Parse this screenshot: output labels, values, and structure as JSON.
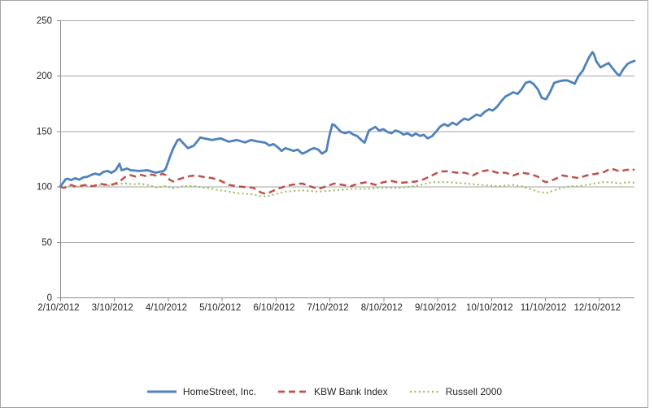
{
  "chart_data": {
    "type": "line",
    "title": "",
    "xlabel": "",
    "ylabel": "",
    "grid": "horizontal",
    "legend_position": "bottom",
    "x_axis": {
      "tick_labels": [
        "2/10/2012",
        "3/10/2012",
        "4/10/2012",
        "5/10/2012",
        "6/10/2012",
        "7/10/2012",
        "8/10/2012",
        "9/10/2012",
        "10/10/2012",
        "11/10/2012",
        "12/10/2012"
      ],
      "tick_positions_months": [
        0,
        1,
        2,
        3,
        4,
        5,
        6,
        7,
        8,
        9,
        10
      ],
      "max_months": 10.66
    },
    "y_axis": {
      "tick_labels": [
        "0",
        "50",
        "100",
        "150",
        "200",
        "250"
      ],
      "ticks": [
        0,
        50,
        100,
        150,
        200,
        250
      ],
      "min": 0,
      "max": 250
    },
    "series": [
      {
        "name": "HomeStreet, Inc.",
        "color": "#4F81BD",
        "style": "solid",
        "points": [
          [
            0,
            100
          ],
          [
            0.05,
            103
          ],
          [
            0.1,
            106.5
          ],
          [
            0.14,
            107
          ],
          [
            0.2,
            105.8
          ],
          [
            0.28,
            107.5
          ],
          [
            0.35,
            106.2
          ],
          [
            0.43,
            108.2
          ],
          [
            0.5,
            108.7
          ],
          [
            0.58,
            110.6
          ],
          [
            0.65,
            111.6
          ],
          [
            0.73,
            110.6
          ],
          [
            0.8,
            113.1
          ],
          [
            0.88,
            114.1
          ],
          [
            0.95,
            112.3
          ],
          [
            1.03,
            114.8
          ],
          [
            1.1,
            120.5
          ],
          [
            1.14,
            114.7
          ],
          [
            1.24,
            116.2
          ],
          [
            1.31,
            114.7
          ],
          [
            1.47,
            114
          ],
          [
            1.62,
            114.7
          ],
          [
            1.77,
            112.5
          ],
          [
            1.92,
            114
          ],
          [
            1.96,
            116.2
          ],
          [
            2.04,
            127.2
          ],
          [
            2.1,
            134.6
          ],
          [
            2.18,
            141.9
          ],
          [
            2.22,
            142.6
          ],
          [
            2.3,
            138.2
          ],
          [
            2.37,
            134.6
          ],
          [
            2.48,
            136.8
          ],
          [
            2.6,
            144.1
          ],
          [
            2.67,
            143.4
          ],
          [
            2.82,
            141.9
          ],
          [
            2.98,
            143.4
          ],
          [
            3.13,
            140.4
          ],
          [
            3.28,
            141.9
          ],
          [
            3.43,
            139.7
          ],
          [
            3.54,
            141.9
          ],
          [
            3.66,
            140.7
          ],
          [
            3.81,
            139.5
          ],
          [
            3.88,
            137
          ],
          [
            3.96,
            138.2
          ],
          [
            4.03,
            135.8
          ],
          [
            4.11,
            132.1
          ],
          [
            4.18,
            134.6
          ],
          [
            4.26,
            133.3
          ],
          [
            4.33,
            132.1
          ],
          [
            4.41,
            133.3
          ],
          [
            4.49,
            129.7
          ],
          [
            4.56,
            130.9
          ],
          [
            4.64,
            133.3
          ],
          [
            4.71,
            134.6
          ],
          [
            4.79,
            133.3
          ],
          [
            4.86,
            129.7
          ],
          [
            4.94,
            132.1
          ],
          [
            4.99,
            144.4
          ],
          [
            5.05,
            156.1
          ],
          [
            5.09,
            155.4
          ],
          [
            5.14,
            152.9
          ],
          [
            5.21,
            149.3
          ],
          [
            5.29,
            148
          ],
          [
            5.36,
            149.3
          ],
          [
            5.44,
            146.8
          ],
          [
            5.51,
            145.6
          ],
          [
            5.59,
            141.9
          ],
          [
            5.65,
            139.5
          ],
          [
            5.73,
            150.5
          ],
          [
            5.85,
            153.7
          ],
          [
            5.92,
            150.5
          ],
          [
            6,
            151.7
          ],
          [
            6.07,
            149.3
          ],
          [
            6.15,
            148
          ],
          [
            6.22,
            150.5
          ],
          [
            6.3,
            149.3
          ],
          [
            6.37,
            146.8
          ],
          [
            6.45,
            148
          ],
          [
            6.53,
            145.6
          ],
          [
            6.6,
            147.8
          ],
          [
            6.68,
            145.6
          ],
          [
            6.75,
            146.6
          ],
          [
            6.82,
            143.4
          ],
          [
            6.9,
            145.3
          ],
          [
            6.97,
            149
          ],
          [
            7.05,
            153.9
          ],
          [
            7.13,
            156.3
          ],
          [
            7.2,
            154.6
          ],
          [
            7.28,
            157.5
          ],
          [
            7.36,
            155.6
          ],
          [
            7.43,
            158.8
          ],
          [
            7.5,
            161.2
          ],
          [
            7.58,
            160
          ],
          [
            7.65,
            162.4
          ],
          [
            7.73,
            164.9
          ],
          [
            7.8,
            163.6
          ],
          [
            7.88,
            167.3
          ],
          [
            7.96,
            169.7
          ],
          [
            8.03,
            168.5
          ],
          [
            8.11,
            172
          ],
          [
            8.19,
            177
          ],
          [
            8.26,
            181
          ],
          [
            8.34,
            183
          ],
          [
            8.41,
            185
          ],
          [
            8.49,
            183.5
          ],
          [
            8.56,
            187.3
          ],
          [
            8.64,
            193.4
          ],
          [
            8.72,
            194.6
          ],
          [
            8.79,
            192.2
          ],
          [
            8.87,
            187.3
          ],
          [
            8.94,
            179.9
          ],
          [
            9.02,
            178.7
          ],
          [
            9.09,
            184.8
          ],
          [
            9.17,
            193.4
          ],
          [
            9.24,
            194.6
          ],
          [
            9.32,
            195.5
          ],
          [
            9.4,
            195.8
          ],
          [
            9.47,
            194.6
          ],
          [
            9.55,
            192.6
          ],
          [
            9.62,
            199.5
          ],
          [
            9.7,
            204.4
          ],
          [
            9.77,
            211.8
          ],
          [
            9.82,
            216.7
          ],
          [
            9.88,
            221.1
          ],
          [
            9.91,
            219.1
          ],
          [
            9.95,
            213
          ],
          [
            10.03,
            207.4
          ],
          [
            10.1,
            209.3
          ],
          [
            10.18,
            211.3
          ],
          [
            10.25,
            206.8
          ],
          [
            10.33,
            202
          ],
          [
            10.38,
            200
          ],
          [
            10.45,
            205.6
          ],
          [
            10.53,
            210.5
          ],
          [
            10.6,
            212.3
          ],
          [
            10.66,
            213.2
          ]
        ]
      },
      {
        "name": "KBW Bank Index",
        "color": "#C0504D",
        "style": "dashed",
        "points": [
          [
            0,
            100
          ],
          [
            0.06,
            98.8
          ],
          [
            0.12,
            99.5
          ],
          [
            0.2,
            101.5
          ],
          [
            0.3,
            99.8
          ],
          [
            0.45,
            101.3
          ],
          [
            0.6,
            100.3
          ],
          [
            0.76,
            102.3
          ],
          [
            0.91,
            101.2
          ],
          [
            1.02,
            102.5
          ],
          [
            1.09,
            104
          ],
          [
            1.2,
            108.5
          ],
          [
            1.3,
            110.3
          ],
          [
            1.4,
            109
          ],
          [
            1.5,
            110.5
          ],
          [
            1.6,
            109.3
          ],
          [
            1.7,
            110.8
          ],
          [
            1.8,
            109.5
          ],
          [
            1.9,
            111.5
          ],
          [
            1.96,
            110.3
          ],
          [
            2.03,
            106.2
          ],
          [
            2.1,
            104.5
          ],
          [
            2.2,
            106.5
          ],
          [
            2.3,
            108
          ],
          [
            2.4,
            109.3
          ],
          [
            2.52,
            110
          ],
          [
            2.67,
            108.5
          ],
          [
            2.82,
            107.6
          ],
          [
            2.98,
            105.1
          ],
          [
            3.13,
            101.5
          ],
          [
            3.28,
            100.2
          ],
          [
            3.43,
            99.5
          ],
          [
            3.58,
            99
          ],
          [
            3.73,
            94.6
          ],
          [
            3.81,
            93.5
          ],
          [
            3.88,
            94.5
          ],
          [
            4.03,
            97.8
          ],
          [
            4.18,
            100.2
          ],
          [
            4.29,
            101.5
          ],
          [
            4.49,
            102.7
          ],
          [
            4.59,
            101
          ],
          [
            4.79,
            97.8
          ],
          [
            4.94,
            100.2
          ],
          [
            5.09,
            102.7
          ],
          [
            5.24,
            101.5
          ],
          [
            5.39,
            100.2
          ],
          [
            5.54,
            102.7
          ],
          [
            5.69,
            103.9
          ],
          [
            5.85,
            101.5
          ],
          [
            6,
            103.9
          ],
          [
            6.15,
            105.1
          ],
          [
            6.3,
            103.3
          ],
          [
            6.45,
            103.9
          ],
          [
            6.6,
            104.5
          ],
          [
            6.75,
            106.5
          ],
          [
            6.9,
            110
          ],
          [
            7.05,
            113.5
          ],
          [
            7.2,
            113.7
          ],
          [
            7.36,
            112.5
          ],
          [
            7.51,
            112.5
          ],
          [
            7.66,
            110
          ],
          [
            7.81,
            113.7
          ],
          [
            7.96,
            114.8
          ],
          [
            8.11,
            112.5
          ],
          [
            8.26,
            112.5
          ],
          [
            8.41,
            110
          ],
          [
            8.56,
            112.5
          ],
          [
            8.72,
            111.3
          ],
          [
            8.87,
            108.8
          ],
          [
            8.94,
            105.5
          ],
          [
            9.02,
            103.9
          ],
          [
            9.09,
            105.1
          ],
          [
            9.17,
            106.4
          ],
          [
            9.32,
            110
          ],
          [
            9.47,
            108.8
          ],
          [
            9.62,
            107.6
          ],
          [
            9.77,
            110
          ],
          [
            9.92,
            111.3
          ],
          [
            10.07,
            112.5
          ],
          [
            10.22,
            116.2
          ],
          [
            10.3,
            115
          ],
          [
            10.38,
            113.7
          ],
          [
            10.53,
            115.2
          ],
          [
            10.6,
            114.2
          ],
          [
            10.66,
            115.5
          ]
        ]
      },
      {
        "name": "Russell 2000",
        "color": "#9BBB59",
        "style": "dotted",
        "points": [
          [
            0,
            100
          ],
          [
            0.06,
            99
          ],
          [
            0.15,
            100.3
          ],
          [
            0.3,
            99.5
          ],
          [
            0.45,
            101
          ],
          [
            0.6,
            100.5
          ],
          [
            0.75,
            101.5
          ],
          [
            0.9,
            101
          ],
          [
            1.05,
            102
          ],
          [
            1.2,
            102.9
          ],
          [
            1.35,
            102
          ],
          [
            1.5,
            102.5
          ],
          [
            1.65,
            101
          ],
          [
            1.8,
            99
          ],
          [
            1.95,
            100.5
          ],
          [
            2.1,
            98.5
          ],
          [
            2.25,
            100
          ],
          [
            2.4,
            100.5
          ],
          [
            2.52,
            100.2
          ],
          [
            2.82,
            97.8
          ],
          [
            2.98,
            96.5
          ],
          [
            3.13,
            95.4
          ],
          [
            3.28,
            94.1
          ],
          [
            3.43,
            93.5
          ],
          [
            3.58,
            92.9
          ],
          [
            3.73,
            91
          ],
          [
            3.88,
            91.6
          ],
          [
            4.03,
            93.5
          ],
          [
            4.18,
            95.4
          ],
          [
            4.49,
            96.5
          ],
          [
            4.79,
            95.4
          ],
          [
            5.09,
            96.5
          ],
          [
            5.39,
            97.8
          ],
          [
            5.69,
            97.8
          ],
          [
            6,
            99
          ],
          [
            6.3,
            98.8
          ],
          [
            6.6,
            100.5
          ],
          [
            6.9,
            103.9
          ],
          [
            7.2,
            103.9
          ],
          [
            7.51,
            102.7
          ],
          [
            7.81,
            101.5
          ],
          [
            8.11,
            100.2
          ],
          [
            8.41,
            101.5
          ],
          [
            8.56,
            100.2
          ],
          [
            8.72,
            97.8
          ],
          [
            8.87,
            95.4
          ],
          [
            9.02,
            94.1
          ],
          [
            9.17,
            96.5
          ],
          [
            9.32,
            99
          ],
          [
            9.47,
            100.2
          ],
          [
            9.62,
            100.2
          ],
          [
            9.77,
            101.5
          ],
          [
            9.92,
            102.7
          ],
          [
            10.07,
            103.9
          ],
          [
            10.22,
            103.9
          ],
          [
            10.38,
            102.7
          ],
          [
            10.53,
            103.9
          ],
          [
            10.66,
            103.4
          ]
        ]
      }
    ],
    "colors": {
      "gridline": "#A6A6A6",
      "axis": "#8C8C8C",
      "tick_text": "#262626",
      "frame_border": "#A6A6A6",
      "background": "#FFFFFF"
    }
  }
}
